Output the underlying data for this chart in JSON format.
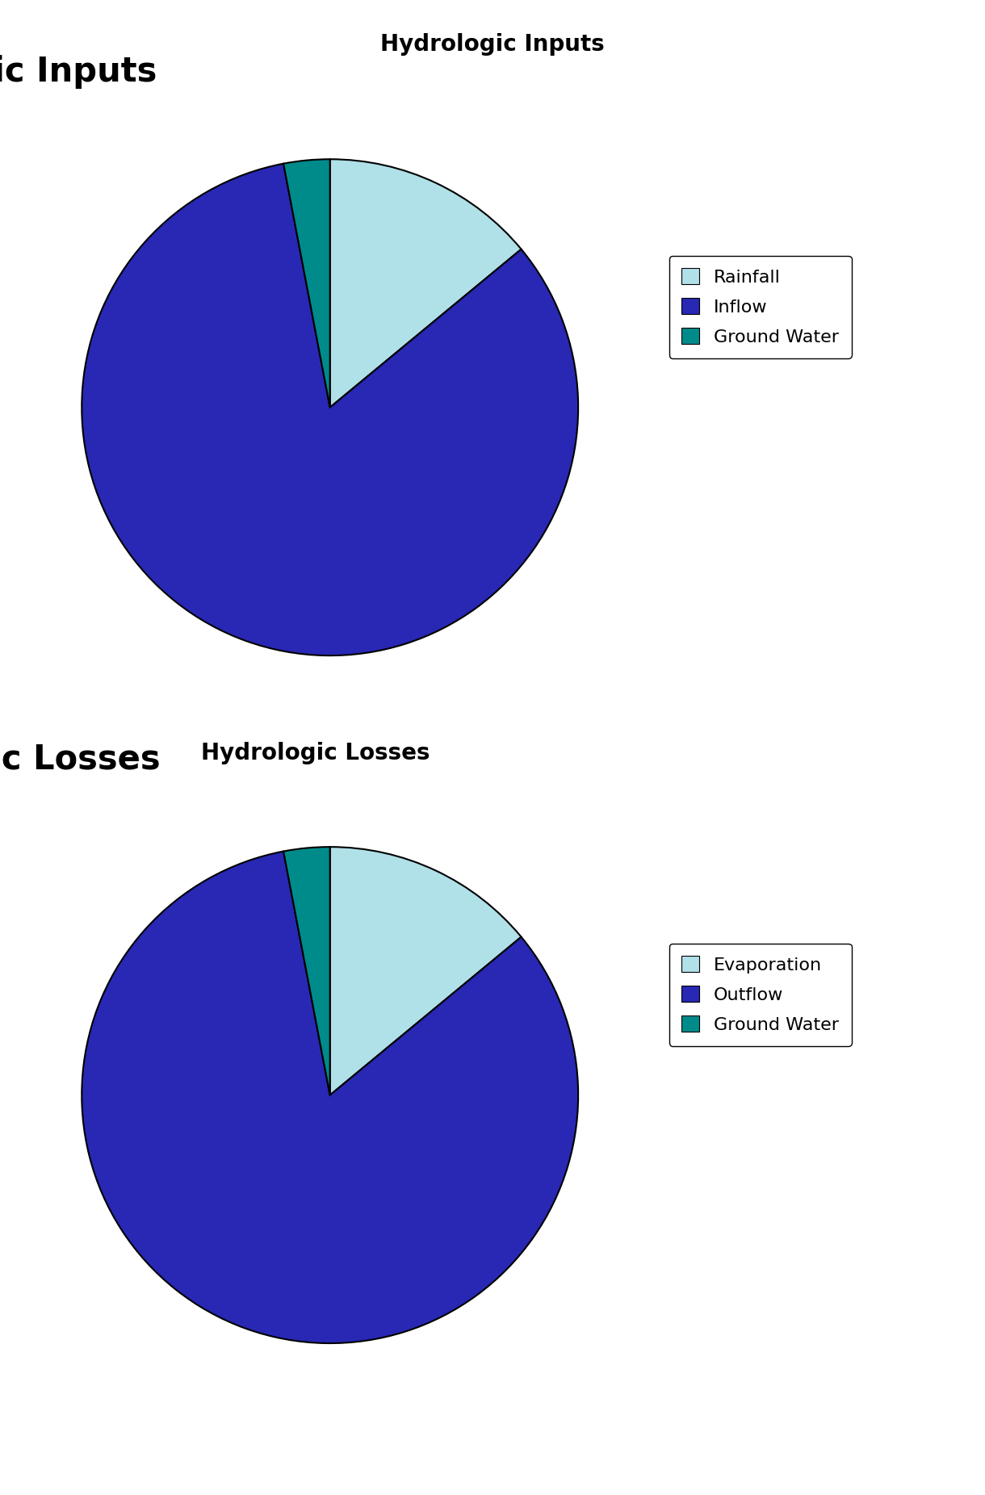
{
  "super_title": "Hydrologic Inputs",
  "super_title_fontsize": 20,
  "super_title_bold": true,
  "between_label": "Hydrologic Losses",
  "between_label_fontsize": 20,
  "between_label_bold": true,
  "chart1": {
    "title": "Hydrologic Inputs",
    "title_fontsize": 30,
    "sizes": [
      14,
      83,
      3
    ],
    "colors": [
      "#b0e0e8",
      "#2828b4",
      "#008b8b"
    ],
    "legend_labels": [
      "Rainfall",
      "Inflow",
      "Ground Water"
    ]
  },
  "chart2": {
    "title": "Hydrologic Losses",
    "title_fontsize": 30,
    "sizes": [
      14,
      83,
      3
    ],
    "colors": [
      "#b0e0e8",
      "#2828b4",
      "#008b8b"
    ],
    "legend_labels": [
      "Evaporation",
      "Outflow",
      "Ground Water"
    ]
  },
  "background_color": "#ffffff",
  "pie_edge_color": "#000000",
  "pie_linewidth": 1.5,
  "legend_fontsize": 16,
  "startangle": 90,
  "counterclock": false
}
